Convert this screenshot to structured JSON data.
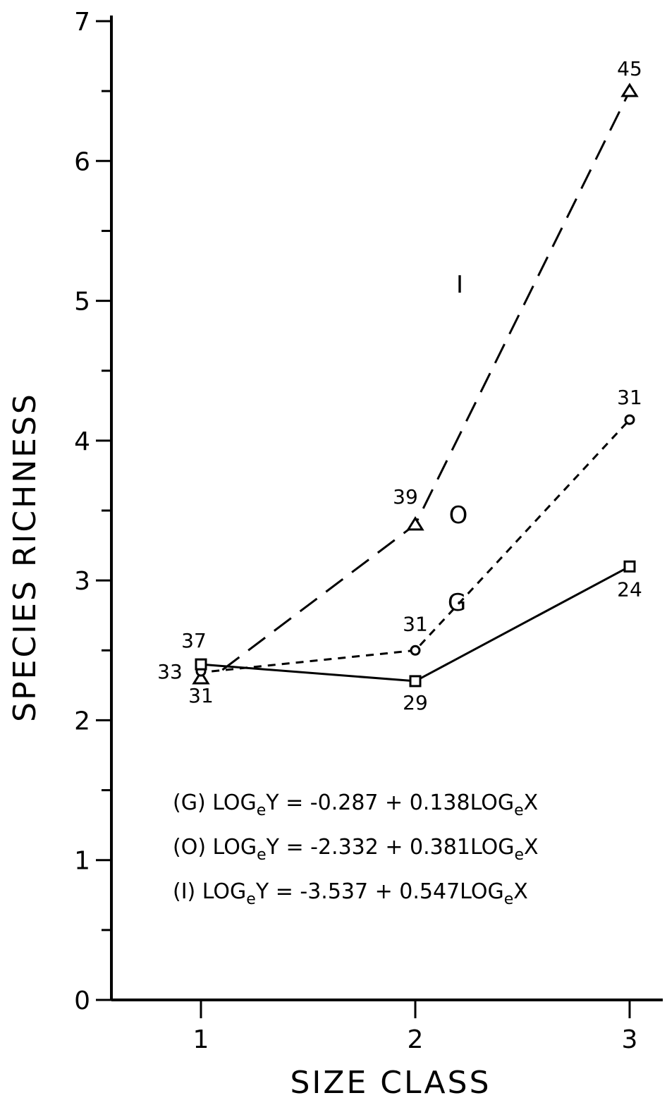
{
  "chart_data": {
    "type": "line",
    "title": "",
    "xlabel": "SIZE CLASS",
    "ylabel": "SPECIES RICHNESS",
    "x_ticks": [
      "1",
      "2",
      "3"
    ],
    "y_ticks": [
      "0",
      "1",
      "2",
      "3",
      "4",
      "5",
      "6",
      "7"
    ],
    "xlim": [
      0.15,
      3.35
    ],
    "ylim": [
      0,
      7
    ],
    "grid": false,
    "legend": "none",
    "series": [
      {
        "name": "I",
        "line_style": "long-dash",
        "marker": "triangle",
        "x": [
          1,
          2,
          3
        ],
        "y": [
          2.3,
          3.4,
          6.5
        ],
        "point_labels": [
          "31",
          "39",
          "45"
        ]
      },
      {
        "name": "O",
        "line_style": "short-dash",
        "marker": "circle",
        "x": [
          1,
          2,
          3
        ],
        "y": [
          2.35,
          2.5,
          4.15
        ],
        "point_labels": [
          "33",
          "31",
          "31"
        ]
      },
      {
        "name": "G",
        "line_style": "solid",
        "marker": "square",
        "x": [
          1,
          2,
          3
        ],
        "y": [
          2.4,
          2.28,
          3.1
        ],
        "point_labels": [
          "37",
          "29",
          "24"
        ]
      }
    ],
    "equations": [
      {
        "prefix": "(G) LOG",
        "sub1": "e",
        "mid": "Y = -0.287 + 0.138LOG",
        "sub2": "e",
        "suffix": "X"
      },
      {
        "prefix": "(O) LOG",
        "sub1": "e",
        "mid": "Y = -2.332 + 0.381LOG",
        "sub2": "e",
        "suffix": "X"
      },
      {
        "prefix": "(I) LOG",
        "sub1": "e",
        "mid": "Y = -3.537 + 0.547LOG",
        "sub2": "e",
        "suffix": "X"
      }
    ]
  }
}
